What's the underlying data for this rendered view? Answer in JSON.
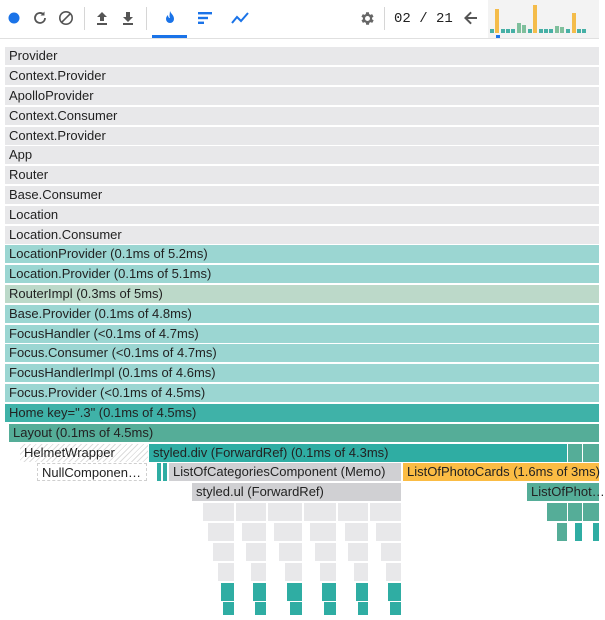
{
  "toolbar": {
    "icons": [
      "record-icon",
      "reload-icon",
      "clear-icon",
      "upload-icon",
      "download-icon",
      "flame-chart-icon",
      "ranked-chart-icon",
      "timeline-icon",
      "gear-icon",
      "arrow-left-icon"
    ],
    "commit_current": "02",
    "commit_divider": "/",
    "commit_total": "21",
    "accent_color": "#1a73e8"
  },
  "flamegraph": {
    "rows": [
      "Provider",
      "Context.Provider",
      "ApolloProvider",
      "Context.Consumer",
      "Context.Provider",
      "App",
      "Router",
      "Base.Consumer",
      "Location",
      "Location.Consumer",
      "LocationProvider (0.1ms of 5.2ms)",
      "Location.Provider (0.1ms of 5.1ms)",
      "RouterImpl (0.3ms of 5ms)",
      "Base.Provider (0.1ms of 4.8ms)",
      "FocusHandler (<0.1ms of 4.7ms)",
      "Focus.Consumer (<0.1ms of 4.7ms)",
      "FocusHandlerImpl (0.1ms of 4.6ms)",
      "Focus.Provider (<0.1ms of 4.5ms)",
      "Home key=\".3\" (0.1ms of 4.5ms)",
      "Layout (0.1ms of 4.5ms)"
    ],
    "helmet": "HelmetWrapper",
    "styled_div": "styled.div (ForwardRef) (0.1ms of 4.3ms)",
    "null_component": "NullComponen…",
    "list_categories": "ListOfCategoriesComponent (Memo)",
    "list_photo_cards": "ListOfPhotoCards (1.6ms of 3ms)",
    "styled_ul": "styled.ul (ForwardRef)",
    "list_of_phot": "ListOfPhot…"
  }
}
